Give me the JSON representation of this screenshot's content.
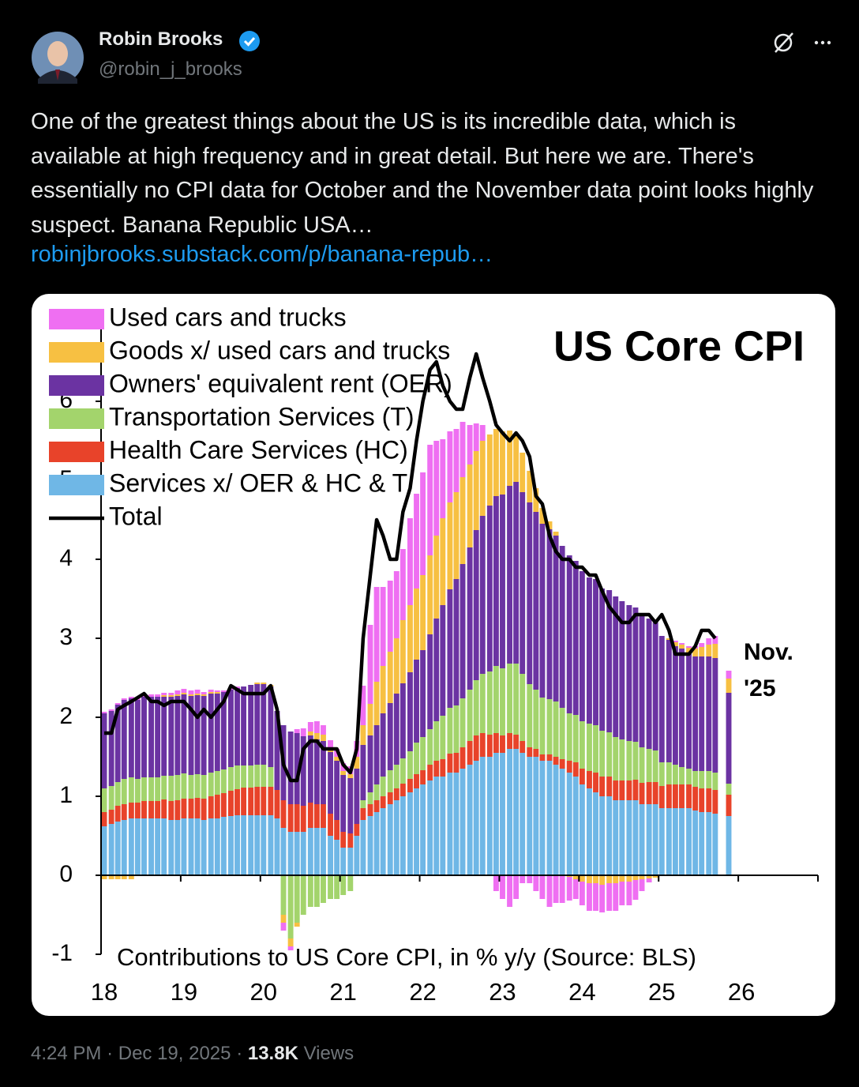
{
  "tweet": {
    "author_name": "Robin Brooks",
    "handle": "@robin_j_brooks",
    "text": "One of the greatest things about the US is its incredible data, which is available at high frequency and in great detail. But here we are. There's essentially no CPI data for October and the November data point looks highly suspect. Banana Republic USA…",
    "link": "robinjbrooks.substack.com/p/banana-repub…",
    "time": "4:24 PM",
    "separator": "·",
    "date": "Dec 19, 2025",
    "views": "13.8K",
    "views_label": "Views"
  },
  "chart_data": {
    "type": "bar",
    "stacked": true,
    "title": "US Core CPI",
    "xlabel": "Contributions to US Core CPI, in % y/y (Source: BLS)",
    "annotation": [
      "Nov.",
      "'25"
    ],
    "xlim": [
      18,
      27
    ],
    "xticks": [
      18,
      19,
      20,
      21,
      22,
      23,
      24,
      25,
      26
    ],
    "ylim": [
      -1,
      7
    ],
    "yticks": [
      -1,
      0,
      1,
      2,
      3,
      4,
      5,
      6
    ],
    "legend": "top-left",
    "x": [
      18.04,
      18.13,
      18.21,
      18.29,
      18.38,
      18.46,
      18.54,
      18.63,
      18.71,
      18.79,
      18.88,
      18.96,
      19.04,
      19.13,
      19.21,
      19.29,
      19.38,
      19.46,
      19.54,
      19.63,
      19.71,
      19.79,
      19.88,
      19.96,
      20.04,
      20.13,
      20.21,
      20.29,
      20.38,
      20.46,
      20.54,
      20.63,
      20.71,
      20.79,
      20.88,
      20.96,
      21.04,
      21.13,
      21.21,
      21.29,
      21.38,
      21.46,
      21.54,
      21.63,
      21.71,
      21.79,
      21.88,
      21.96,
      22.04,
      22.13,
      22.21,
      22.29,
      22.38,
      22.46,
      22.54,
      22.63,
      22.71,
      22.79,
      22.88,
      22.96,
      23.04,
      23.13,
      23.21,
      23.29,
      23.38,
      23.46,
      23.54,
      23.63,
      23.71,
      23.79,
      23.88,
      23.96,
      24.04,
      24.13,
      24.21,
      24.29,
      24.38,
      24.46,
      24.54,
      24.63,
      24.71,
      24.79,
      24.88,
      24.96,
      25.04,
      25.13,
      25.21,
      25.29,
      25.38,
      25.46,
      25.54,
      25.63,
      25.71,
      25.79,
      25.88
    ],
    "series": [
      {
        "name": "Services x/ OER & HC & T",
        "color": "#6fb7e6",
        "values": [
          0.62,
          0.65,
          0.68,
          0.7,
          0.72,
          0.72,
          0.72,
          0.72,
          0.72,
          0.72,
          0.7,
          0.7,
          0.72,
          0.72,
          0.72,
          0.7,
          0.72,
          0.72,
          0.74,
          0.75,
          0.76,
          0.76,
          0.76,
          0.76,
          0.76,
          0.76,
          0.72,
          0.6,
          0.55,
          0.55,
          0.55,
          0.6,
          0.6,
          0.6,
          0.5,
          0.45,
          0.35,
          0.35,
          0.5,
          0.7,
          0.75,
          0.8,
          0.85,
          0.9,
          0.95,
          1.0,
          1.05,
          1.1,
          1.15,
          1.2,
          1.25,
          1.25,
          1.3,
          1.3,
          1.35,
          1.4,
          1.45,
          1.5,
          1.5,
          1.55,
          1.55,
          1.6,
          1.6,
          1.55,
          1.5,
          1.5,
          1.45,
          1.45,
          1.4,
          1.35,
          1.3,
          1.25,
          1.15,
          1.1,
          1.05,
          1.0,
          1.0,
          0.95,
          0.95,
          0.95,
          0.95,
          0.9,
          0.9,
          0.9,
          0.85,
          0.85,
          0.85,
          0.85,
          0.85,
          0.82,
          0.8,
          0.8,
          0.78,
          null,
          0.75
        ]
      },
      {
        "name": "Health Care Services (HC)",
        "color": "#e8432a",
        "values": [
          0.18,
          0.18,
          0.2,
          0.2,
          0.2,
          0.2,
          0.22,
          0.22,
          0.22,
          0.24,
          0.24,
          0.25,
          0.25,
          0.25,
          0.26,
          0.27,
          0.28,
          0.3,
          0.3,
          0.32,
          0.33,
          0.35,
          0.35,
          0.36,
          0.36,
          0.36,
          0.36,
          0.35,
          0.35,
          0.35,
          0.33,
          0.32,
          0.3,
          0.3,
          0.28,
          0.25,
          0.2,
          0.18,
          0.15,
          0.15,
          0.15,
          0.15,
          0.15,
          0.15,
          0.15,
          0.16,
          0.17,
          0.18,
          0.18,
          0.2,
          0.2,
          0.22,
          0.24,
          0.25,
          0.27,
          0.3,
          0.32,
          0.3,
          0.28,
          0.25,
          0.22,
          0.2,
          0.18,
          0.15,
          0.12,
          0.1,
          0.08,
          0.08,
          0.1,
          0.12,
          0.15,
          0.18,
          0.2,
          0.22,
          0.25,
          0.25,
          0.25,
          0.25,
          0.25,
          0.25,
          0.26,
          0.27,
          0.28,
          0.28,
          0.28,
          0.3,
          0.3,
          0.3,
          0.3,
          0.3,
          0.3,
          0.3,
          0.3,
          null,
          0.27
        ]
      },
      {
        "name": "Transportation Services (T)",
        "color": "#a3d46c",
        "values": [
          0.3,
          0.3,
          0.3,
          0.32,
          0.32,
          0.3,
          0.3,
          0.3,
          0.3,
          0.3,
          0.32,
          0.32,
          0.32,
          0.3,
          0.3,
          0.3,
          0.3,
          0.3,
          0.3,
          0.3,
          0.3,
          0.28,
          0.28,
          0.28,
          0.28,
          0.25,
          0.0,
          -0.5,
          -0.8,
          -0.6,
          -0.5,
          -0.4,
          -0.4,
          -0.35,
          -0.3,
          -0.3,
          -0.25,
          -0.2,
          0.0,
          0.1,
          0.15,
          0.2,
          0.25,
          0.28,
          0.3,
          0.32,
          0.35,
          0.4,
          0.42,
          0.45,
          0.5,
          0.55,
          0.58,
          0.6,
          0.62,
          0.65,
          0.7,
          0.75,
          0.8,
          0.85,
          0.85,
          0.88,
          0.9,
          0.85,
          0.8,
          0.75,
          0.72,
          0.7,
          0.7,
          0.65,
          0.6,
          0.6,
          0.6,
          0.6,
          0.6,
          0.58,
          0.56,
          0.55,
          0.52,
          0.5,
          0.48,
          0.45,
          0.42,
          0.4,
          0.3,
          0.28,
          0.25,
          0.22,
          0.2,
          0.2,
          0.22,
          0.22,
          0.22,
          null,
          0.14
        ]
      },
      {
        "name": "Owners' equivalent rent (OER)",
        "color": "#6b33a2",
        "values": [
          0.95,
          0.95,
          0.98,
          1.0,
          1.0,
          1.0,
          1.02,
          1.02,
          1.02,
          1.0,
          1.0,
          1.0,
          1.0,
          1.0,
          1.0,
          1.0,
          1.0,
          0.98,
          0.98,
          0.98,
          0.98,
          1.0,
          1.02,
          1.02,
          1.02,
          1.02,
          1.0,
          0.95,
          0.92,
          0.9,
          0.88,
          0.85,
          0.82,
          0.8,
          0.78,
          0.75,
          0.72,
          0.7,
          0.7,
          0.7,
          0.72,
          0.75,
          0.8,
          0.85,
          0.9,
          0.95,
          1.0,
          1.05,
          1.1,
          1.2,
          1.3,
          1.4,
          1.5,
          1.6,
          1.7,
          1.8,
          1.9,
          2.0,
          2.1,
          2.15,
          2.2,
          2.25,
          2.3,
          2.3,
          2.3,
          2.25,
          2.2,
          2.15,
          2.1,
          2.05,
          2.0,
          1.95,
          1.9,
          1.85,
          1.85,
          1.8,
          1.8,
          1.78,
          1.75,
          1.72,
          1.7,
          1.68,
          1.65,
          1.62,
          1.6,
          1.55,
          1.5,
          1.5,
          1.45,
          1.45,
          1.45,
          1.45,
          1.45,
          null,
          1.15
        ]
      },
      {
        "name": "Goods x/ used cars and trucks",
        "color": "#f7c042",
        "values": [
          -0.05,
          -0.05,
          -0.05,
          -0.05,
          -0.05,
          0.0,
          0.0,
          0.0,
          0.0,
          0.02,
          0.02,
          0.02,
          0.02,
          0.02,
          0.02,
          0.02,
          0.02,
          0.02,
          0.0,
          0.0,
          0.0,
          0.0,
          0.0,
          0.02,
          0.02,
          0.02,
          0.0,
          -0.1,
          -0.1,
          -0.05,
          0.0,
          0.05,
          0.08,
          0.08,
          0.05,
          0.05,
          0.05,
          0.05,
          0.15,
          0.25,
          0.4,
          0.55,
          0.6,
          0.65,
          0.7,
          0.8,
          0.85,
          0.9,
          0.95,
          1.0,
          1.05,
          1.1,
          1.1,
          1.1,
          1.1,
          1.05,
          1.0,
          0.95,
          0.9,
          0.85,
          0.8,
          0.7,
          0.6,
          0.5,
          0.4,
          0.3,
          0.2,
          0.1,
          0.05,
          0.0,
          -0.02,
          -0.05,
          -0.08,
          -0.1,
          -0.1,
          -0.12,
          -0.1,
          -0.1,
          -0.08,
          -0.08,
          -0.06,
          -0.05,
          -0.04,
          -0.03,
          0.0,
          0.02,
          0.05,
          0.05,
          0.08,
          0.1,
          0.12,
          0.15,
          0.18,
          null,
          0.18
        ]
      },
      {
        "name": "Used cars and trucks",
        "color": "#ef6ff2",
        "values": [
          0.02,
          0.02,
          0.02,
          0.02,
          0.02,
          0.02,
          0.03,
          0.03,
          0.03,
          0.03,
          0.03,
          0.05,
          0.05,
          0.05,
          0.05,
          0.03,
          0.03,
          0.02,
          0.02,
          0.02,
          0.02,
          0.0,
          0.0,
          0.0,
          0.0,
          0.0,
          0.0,
          -0.1,
          -0.05,
          0.05,
          0.1,
          0.12,
          0.15,
          0.12,
          0.1,
          0.1,
          0.1,
          0.1,
          0.2,
          0.5,
          1.0,
          1.2,
          1.0,
          0.9,
          0.85,
          0.9,
          1.1,
          1.2,
          1.3,
          1.4,
          1.2,
          1.0,
          0.9,
          0.8,
          0.7,
          0.5,
          0.35,
          0.2,
          0.0,
          -0.2,
          -0.3,
          -0.4,
          -0.3,
          -0.1,
          -0.1,
          -0.2,
          -0.3,
          -0.4,
          -0.35,
          -0.35,
          -0.3,
          -0.25,
          -0.3,
          -0.35,
          -0.35,
          -0.35,
          -0.35,
          -0.35,
          -0.3,
          -0.3,
          -0.25,
          -0.15,
          -0.05,
          0.0,
          0.0,
          0.0,
          0.02,
          0.02,
          0.02,
          0.03,
          0.05,
          0.08,
          0.1,
          null,
          0.1
        ]
      },
      {
        "name": "Total",
        "type": "line",
        "color": "#000000",
        "values": [
          1.8,
          1.8,
          2.1,
          2.15,
          2.2,
          2.25,
          2.3,
          2.2,
          2.2,
          2.15,
          2.2,
          2.2,
          2.2,
          2.1,
          2.0,
          2.1,
          2.0,
          2.1,
          2.2,
          2.4,
          2.35,
          2.3,
          2.3,
          2.3,
          2.3,
          2.4,
          2.1,
          1.4,
          1.2,
          1.2,
          1.6,
          1.7,
          1.7,
          1.6,
          1.6,
          1.6,
          1.4,
          1.3,
          1.6,
          3.0,
          3.8,
          4.5,
          4.3,
          4.0,
          4.0,
          4.6,
          4.9,
          5.5,
          6.0,
          6.4,
          6.5,
          6.2,
          6.0,
          5.9,
          5.9,
          6.3,
          6.6,
          6.3,
          6.0,
          5.7,
          5.6,
          5.5,
          5.6,
          5.5,
          5.3,
          4.8,
          4.7,
          4.3,
          4.1,
          4.0,
          4.0,
          3.9,
          3.9,
          3.8,
          3.8,
          3.6,
          3.4,
          3.3,
          3.2,
          3.2,
          3.3,
          3.3,
          3.3,
          3.2,
          3.3,
          3.1,
          2.8,
          2.8,
          2.8,
          2.9,
          3.1,
          3.1,
          3.0,
          null,
          null
        ]
      }
    ]
  }
}
